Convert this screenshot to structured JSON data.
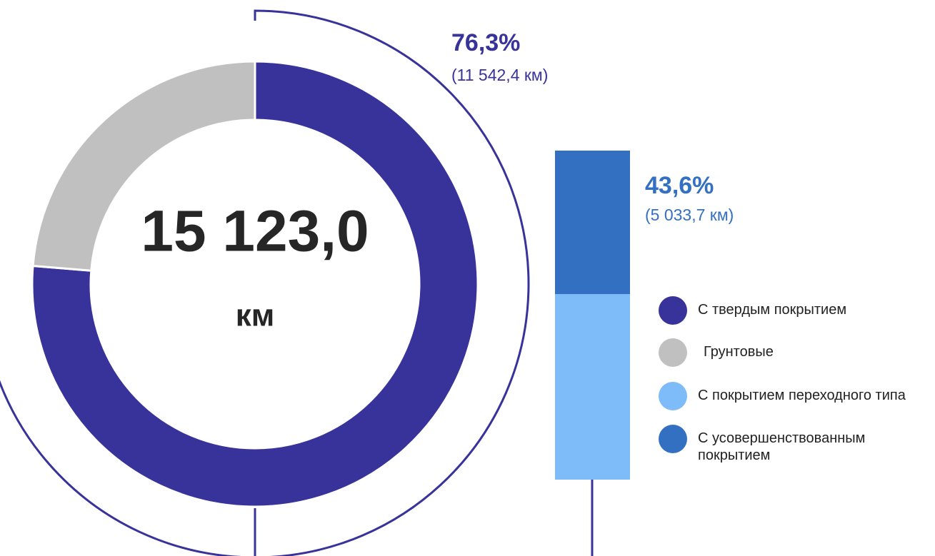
{
  "chart_data": [
    {
      "type": "donut",
      "center_label": "15 123,0",
      "center_unit": "км",
      "categories": [
        "С твердым покрытием",
        "Грунтовые"
      ],
      "colors": [
        "#38339a",
        "#c0c0c0"
      ],
      "values": [
        76.3,
        23.7
      ],
      "value_labels": [
        "76,3%",
        null
      ],
      "value_details": [
        "(11 542,4 км)",
        null
      ]
    },
    {
      "type": "stacked_bar",
      "series": [
        {
          "name": "С усовершенствованным покрытием",
          "color": "#3470c2",
          "values": [
            43.6
          ],
          "value_labels": [
            "43,6%"
          ],
          "value_details": [
            "(5 033,7 км)"
          ]
        },
        {
          "name": "С покрытием переходного типа",
          "color": "#7ebbf9",
          "values": [
            56.4
          ]
        }
      ]
    }
  ]
}
